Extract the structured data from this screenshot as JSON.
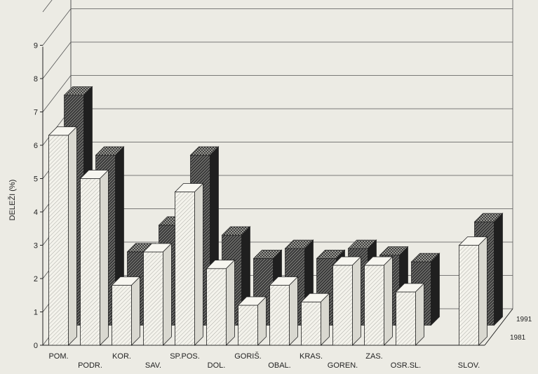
{
  "chart_data": {
    "type": "bar",
    "style": "3d-clustered",
    "ylabel": "DELEŽI (%)",
    "ylim": [
      0,
      10
    ],
    "yticks": [
      0,
      1,
      2,
      3,
      4,
      5,
      6,
      7,
      8,
      9
    ],
    "grid": true,
    "legend": "right",
    "categories": [
      "POM.",
      "PODR.",
      "KOR.",
      "SAV.",
      "SP.POS.",
      "DOL.",
      "GORIŠ.",
      "OBAL.",
      "KRAS.",
      "GOREN.",
      "ZAS.",
      "OSR.SL.",
      "",
      "SLOV."
    ],
    "series": [
      {
        "name": "1981",
        "values": [
          6.3,
          5.0,
          1.8,
          2.8,
          4.6,
          2.3,
          1.2,
          1.8,
          1.3,
          2.4,
          2.4,
          1.6,
          null,
          3.0
        ]
      },
      {
        "name": "1991",
        "values": [
          6.9,
          5.1,
          2.2,
          3.0,
          5.1,
          2.7,
          2.0,
          2.3,
          2.0,
          2.3,
          2.1,
          1.9,
          null,
          3.1
        ]
      }
    ],
    "colors": {
      "front": "#f4f3ec",
      "back": "#2b2b2b",
      "grid": "#555555",
      "axis": "#222222"
    }
  }
}
